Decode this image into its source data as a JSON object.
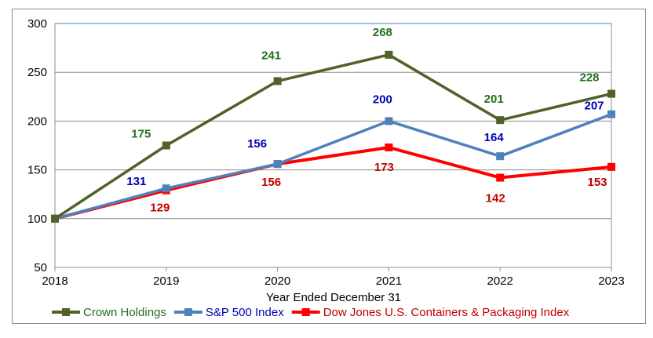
{
  "chart_data": {
    "type": "line",
    "title": "",
    "xlabel": "Year Ended December 31",
    "ylabel": "",
    "categories": [
      "2018",
      "2019",
      "2020",
      "2021",
      "2022",
      "2023"
    ],
    "ylim": [
      50,
      300
    ],
    "yticks": [
      "50",
      "100",
      "150",
      "200",
      "250",
      "300"
    ],
    "grid": true,
    "legend": "bottom",
    "series": [
      {
        "name": "Crown Holdings",
        "values": [
          100,
          175,
          241,
          268,
          201,
          228
        ],
        "color": "#4F6228",
        "label_color": "#1F6E1F"
      },
      {
        "name": "S&P 500 Index",
        "values": [
          100,
          131,
          156,
          200,
          164,
          207
        ],
        "color": "#4F81BD",
        "label_color": "#0000B4"
      },
      {
        "name": "Dow Jones U.S. Containers & Packaging Index",
        "values": [
          100,
          129,
          156,
          173,
          142,
          153
        ],
        "color": "#FF0000",
        "label_color": "#C00000"
      }
    ]
  }
}
